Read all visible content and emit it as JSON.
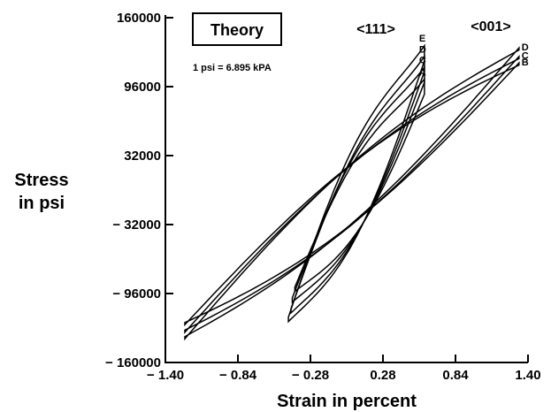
{
  "chart_data": {
    "type": "line",
    "title": "Theory",
    "xlabel": "Strain in percent",
    "ylabel_line1": "Stress",
    "ylabel_line2": "in psi",
    "note": "1 psi = 6.895 kPA",
    "xlim": [
      -1.4,
      1.4
    ],
    "ylim": [
      -160000,
      160000
    ],
    "x_ticks": [
      -1.4,
      -0.84,
      -0.28,
      0.28,
      0.84,
      1.4
    ],
    "x_tick_labels": [
      "− 1.40",
      "− 0.84",
      "− 0.28",
      "0.28",
      "0.84",
      "1.40"
    ],
    "y_ticks": [
      160000,
      96000,
      32000,
      -32000,
      -96000,
      -160000
    ],
    "y_tick_labels": [
      "160000",
      "96000",
      "32000",
      "− 32000",
      "− 96000",
      "− 160000"
    ],
    "grid": false,
    "groups": [
      {
        "name": "<111>",
        "series": [
          {
            "name": "A",
            "x": [
              -0.4,
              0.6
            ],
            "y": [
              -90000,
              89000
            ],
            "loop_width": 35000,
            "right_bulge": 14000,
            "left_bulge": -4000
          },
          {
            "name": "C",
            "x": [
              -0.42,
              0.6
            ],
            "y": [
              -100000,
              100000
            ],
            "loop_width": 38000,
            "right_bulge": 14000,
            "left_bulge": -4000
          },
          {
            "name": "D",
            "x": [
              -0.43,
              0.6
            ],
            "y": [
              -110000,
              110000
            ],
            "loop_width": 40000,
            "right_bulge": 14000,
            "left_bulge": -4000
          },
          {
            "name": "E",
            "x": [
              -0.45,
              0.6
            ],
            "y": [
              -118000,
              120000
            ],
            "loop_width": 44000,
            "right_bulge": 14000,
            "left_bulge": -4000
          }
        ]
      },
      {
        "name": "<001>",
        "series": [
          {
            "name": "B",
            "x": [
              -1.25,
              1.33
            ],
            "y": [
              -125000,
              118000
            ],
            "loop_width": 28000,
            "right_bulge": -2000,
            "left_bulge": 2000
          },
          {
            "name": "C",
            "x": [
              -1.25,
              1.33
            ],
            "y": [
              -132000,
              124000
            ],
            "loop_width": 28000,
            "right_bulge": -2000,
            "left_bulge": 2000
          },
          {
            "name": "D",
            "x": [
              -1.25,
              1.33
            ],
            "y": [
              -138000,
              132000
            ],
            "loop_width": 28000,
            "right_bulge": -2000,
            "left_bulge": 2000
          }
        ]
      }
    ]
  }
}
